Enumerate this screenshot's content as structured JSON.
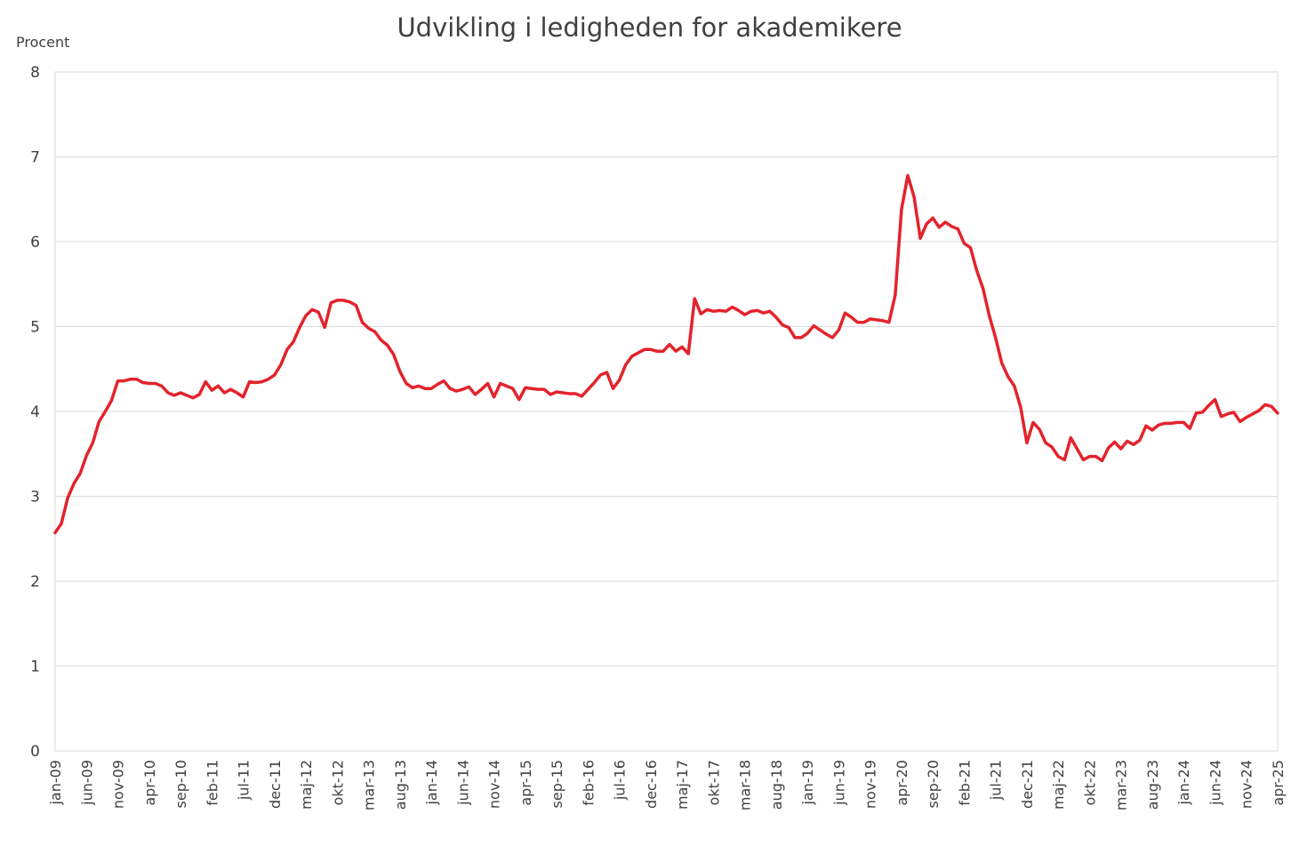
{
  "chart_data": {
    "type": "line",
    "title": "Udvikling i ledigheden for akademikere",
    "ylabel": "Procent",
    "xlabel": "",
    "ylim": [
      0,
      8
    ],
    "yticks": [
      "0",
      "1",
      "2",
      "3",
      "4",
      "5",
      "6",
      "7",
      "8"
    ],
    "grid": true,
    "legend": "none",
    "x_start": "jan-09",
    "x_end": "apr-25",
    "xtick_labels": [
      "jan-09",
      "jun-09",
      "nov-09",
      "apr-10",
      "sep-10",
      "feb-11",
      "jul-11",
      "dec-11",
      "maj-12",
      "okt-12",
      "mar-13",
      "aug-13",
      "jan-14",
      "jun-14",
      "nov-14",
      "apr-15",
      "sep-15",
      "feb-16",
      "jul-16",
      "dec-16",
      "maj-17",
      "okt-17",
      "mar-18",
      "aug-18",
      "jan-19",
      "jun-19",
      "nov-19",
      "apr-20",
      "sep-20",
      "feb-21",
      "jul-21",
      "dec-21",
      "maj-22",
      "okt-22",
      "mar-23",
      "aug-23",
      "jan-24",
      "jun-24",
      "nov-24",
      "apr-25"
    ],
    "series": [
      {
        "color": "#e3232c",
        "values": [
          2.57,
          2.68,
          2.98,
          3.15,
          3.27,
          3.48,
          3.63,
          3.88,
          4.0,
          4.13,
          4.36,
          4.36,
          4.38,
          4.38,
          4.34,
          4.33,
          4.33,
          4.3,
          4.22,
          4.19,
          4.22,
          4.19,
          4.16,
          4.2,
          4.35,
          4.25,
          4.3,
          4.22,
          4.26,
          4.22,
          4.17,
          4.35,
          4.34,
          4.35,
          4.38,
          4.43,
          4.55,
          4.73,
          4.82,
          4.99,
          5.13,
          5.2,
          5.17,
          4.99,
          5.28,
          5.31,
          5.31,
          5.29,
          5.25,
          5.05,
          4.98,
          4.94,
          4.84,
          4.78,
          4.67,
          4.47,
          4.33,
          4.28,
          4.3,
          4.27,
          4.27,
          4.32,
          4.36,
          4.27,
          4.24,
          4.26,
          4.29,
          4.2,
          4.26,
          4.33,
          4.17,
          4.33,
          4.3,
          4.27,
          4.14,
          4.28,
          4.27,
          4.26,
          4.26,
          4.2,
          4.23,
          4.22,
          4.21,
          4.21,
          4.18,
          4.26,
          4.34,
          4.43,
          4.46,
          4.27,
          4.37,
          4.55,
          4.65,
          4.69,
          4.73,
          4.73,
          4.71,
          4.71,
          4.79,
          4.71,
          4.76,
          4.68,
          5.33,
          5.15,
          5.2,
          5.18,
          5.19,
          5.18,
          5.23,
          5.19,
          5.14,
          5.18,
          5.19,
          5.16,
          5.18,
          5.11,
          5.02,
          4.99,
          4.87,
          4.87,
          4.92,
          5.01,
          4.96,
          4.91,
          4.87,
          4.96,
          5.16,
          5.11,
          5.05,
          5.05,
          5.09,
          5.08,
          5.07,
          5.05,
          5.37,
          6.38,
          6.78,
          6.53,
          6.04,
          6.21,
          6.28,
          6.17,
          6.23,
          6.18,
          6.15,
          5.98,
          5.93,
          5.66,
          5.45,
          5.13,
          4.87,
          4.57,
          4.41,
          4.3,
          4.05,
          3.63,
          3.87,
          3.79,
          3.63,
          3.58,
          3.47,
          3.43,
          3.69,
          3.56,
          3.43,
          3.47,
          3.47,
          3.42,
          3.57,
          3.64,
          3.56,
          3.65,
          3.61,
          3.66,
          3.83,
          3.78,
          3.84,
          3.86,
          3.86,
          3.87,
          3.87,
          3.8,
          3.98,
          3.99,
          4.07,
          4.14,
          3.94,
          3.97,
          3.99,
          3.88,
          3.93,
          3.97,
          4.01,
          4.08,
          4.06,
          3.98
        ]
      }
    ]
  }
}
